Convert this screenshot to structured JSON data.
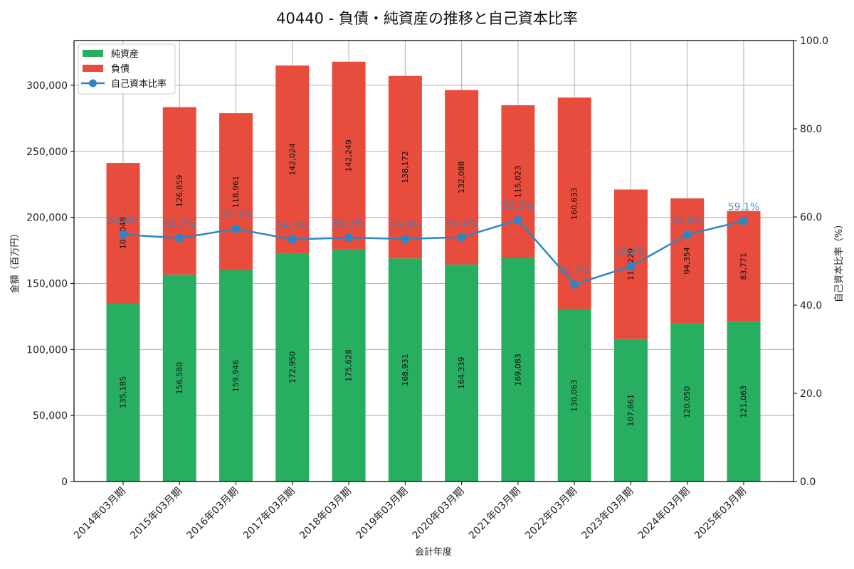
{
  "chart_data": {
    "type": "bar",
    "subtype": "stacked-bar-with-line-secondary-axis",
    "title": "40440 - 負債・純資産の推移と自己資本比率",
    "xlabel": "会計年度",
    "ylabel": "金額（百万円）",
    "y2label": "自己資本比率（%）",
    "ylim": [
      0,
      333900
    ],
    "y2lim": [
      0,
      100
    ],
    "yticks": [
      0,
      50000,
      100000,
      150000,
      200000,
      250000,
      300000
    ],
    "ytick_labels": [
      "0",
      "50,000",
      "100,000",
      "150,000",
      "200,000",
      "250,000",
      "300,000"
    ],
    "y2ticks": [
      0,
      20,
      40,
      60,
      80,
      100
    ],
    "y2tick_labels": [
      "0.0",
      "20.0",
      "40.0",
      "60.0",
      "80.0",
      "100.0"
    ],
    "grid": true,
    "legend_position": "upper left",
    "categories": [
      "2014年03月期",
      "2015年03月期",
      "2016年03月期",
      "2017年03月期",
      "2018年03月期",
      "2019年03月期",
      "2020年03月期",
      "2021年03月期",
      "2022年03月期",
      "2023年03月期",
      "2024年03月期",
      "2025年03月期"
    ],
    "series": [
      {
        "name": "純資産",
        "type": "bar",
        "stack": "bottom",
        "color": "#27ae60",
        "values": [
          135185,
          156580,
          159946,
          172950,
          175628,
          168931,
          164339,
          169083,
          130063,
          107861,
          120050,
          121063
        ],
        "labels": [
          "135,185",
          "156,580",
          "159,946",
          "172,950",
          "175,628",
          "168,931",
          "164,339",
          "169,083",
          "130,063",
          "107,861",
          "120,050",
          "121,063"
        ]
      },
      {
        "name": "負債",
        "type": "bar",
        "stack": "top",
        "color": "#e74c3c",
        "values": [
          106048,
          126859,
          118961,
          142024,
          142249,
          138172,
          132088,
          115823,
          160633,
          113229,
          94354,
          83771
        ],
        "labels": [
          "106,048",
          "126,859",
          "118,961",
          "142,024",
          "142,249",
          "138,172",
          "132,088",
          "115,823",
          "160,633",
          "113,229",
          "94,354",
          "83,771"
        ]
      },
      {
        "name": "自己資本比率",
        "type": "line",
        "axis": "right",
        "color": "#2e86c1",
        "values": [
          56.0,
          55.2,
          57.3,
          54.9,
          55.3,
          55.0,
          55.4,
          59.3,
          44.7,
          48.8,
          56.0,
          59.1
        ],
        "labels": [
          "56.0%",
          "55.2%",
          "57.3%",
          "54.9%",
          "55.3%",
          "55.0%",
          "55.4%",
          "59.3%",
          "44.7%",
          "48.8%",
          "56.0%",
          "59.1%"
        ]
      }
    ]
  }
}
